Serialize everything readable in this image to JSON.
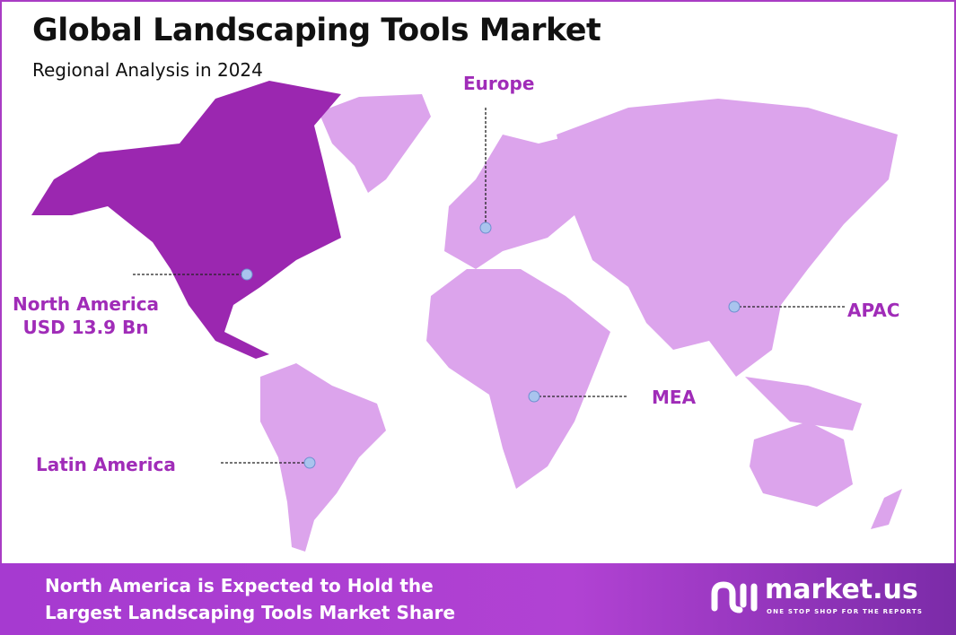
{
  "header": {
    "title": "Global Landscaping Tools Market",
    "subtitle": "Regional Analysis in 2024"
  },
  "regions": [
    {
      "name": "North America",
      "value": "USD 13.9 Bn",
      "highlight": true
    },
    {
      "name": "Europe"
    },
    {
      "name": "APAC"
    },
    {
      "name": "MEA"
    },
    {
      "name": "Latin America"
    }
  ],
  "colors": {
    "highlight": "#9b27b0",
    "other": "#dca4ec",
    "label": "#a02cb8",
    "marker": "#a9c4ee"
  },
  "footer": {
    "line1": "North America is Expected to Hold the",
    "line2": "Largest Landscaping Tools Market Share"
  },
  "logo": {
    "name": "market.us",
    "tagline": "ONE STOP SHOP FOR THE REPORTS"
  }
}
